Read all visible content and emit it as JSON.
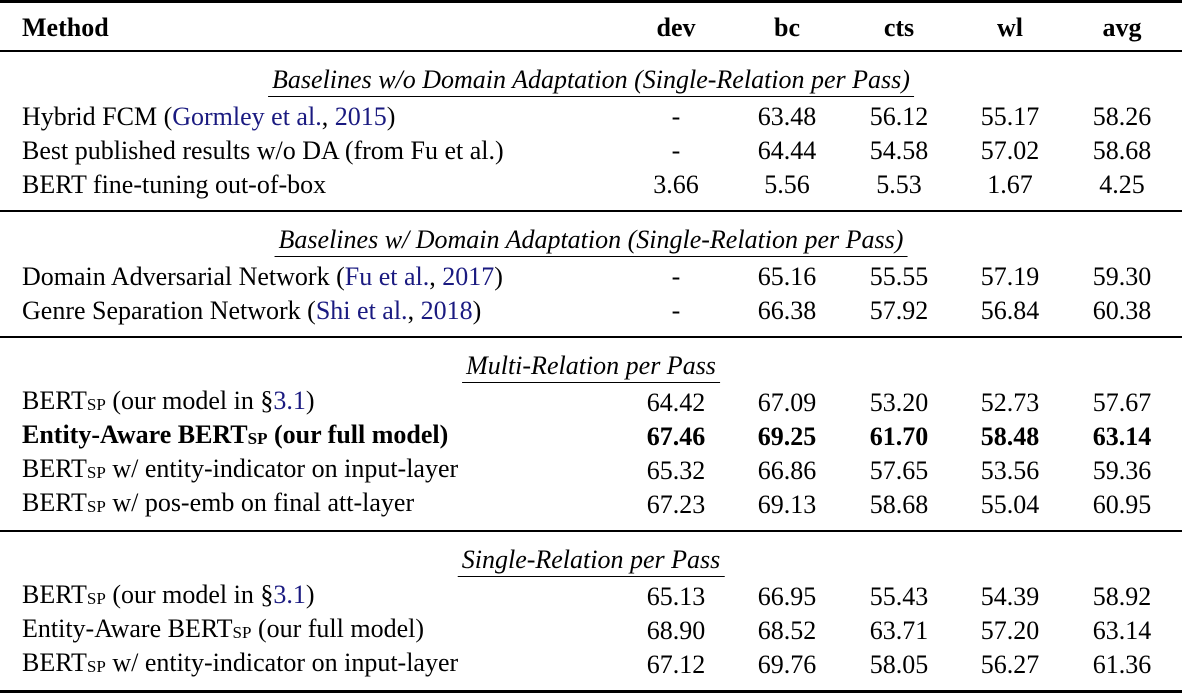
{
  "table": {
    "header": [
      "Method",
      "dev",
      "bc",
      "cts",
      "wl",
      "avg"
    ],
    "sections": [
      {
        "title": "Baselines w/o Domain Adaptation (Single-Relation per Pass)",
        "rows": [
          {
            "method": [
              {
                "text": "Hybrid FCM ("
              },
              {
                "text": "Gormley et al.",
                "style": "link"
              },
              {
                "text": ", "
              },
              {
                "text": "2015",
                "style": "link"
              },
              {
                "text": ")"
              }
            ],
            "cells": [
              "-",
              "63.48",
              "56.12",
              "55.17",
              "58.26"
            ]
          },
          {
            "method": [
              {
                "text": "Best published results w/o DA (from Fu et al.)"
              }
            ],
            "cells": [
              "-",
              "64.44",
              "54.58",
              "57.02",
              "58.68"
            ]
          },
          {
            "method": [
              {
                "text": "BERT fine-tuning out-of-box"
              }
            ],
            "cells": [
              "3.66",
              "5.56",
              "5.53",
              "1.67",
              "4.25"
            ]
          }
        ]
      },
      {
        "title": "Baselines w/ Domain Adaptation (Single-Relation per Pass)",
        "rows": [
          {
            "method": [
              {
                "text": "Domain Adversarial Network ("
              },
              {
                "text": "Fu et al.",
                "style": "link"
              },
              {
                "text": ", "
              },
              {
                "text": "2017",
                "style": "link"
              },
              {
                "text": ")"
              }
            ],
            "cells": [
              "-",
              "65.16",
              "55.55",
              "57.19",
              "59.30"
            ]
          },
          {
            "method": [
              {
                "text": "Genre Separation Network ("
              },
              {
                "text": "Shi et al.",
                "style": "link"
              },
              {
                "text": ", "
              },
              {
                "text": "2018",
                "style": "link"
              },
              {
                "text": ")"
              }
            ],
            "cells": [
              "-",
              "66.38",
              "57.92",
              "56.84",
              "60.38"
            ]
          }
        ]
      },
      {
        "title": "Multi-Relation per Pass",
        "rows": [
          {
            "method": [
              {
                "text": "BERT"
              },
              {
                "text": "SP",
                "style": "sub"
              },
              {
                "text": " (our model in §"
              },
              {
                "text": "3.1",
                "style": "link"
              },
              {
                "text": ")"
              }
            ],
            "cells": [
              "64.42",
              "67.09",
              "53.20",
              "52.73",
              "57.67"
            ]
          },
          {
            "method": [
              {
                "text": "Entity-Aware BERT"
              },
              {
                "text": "SP",
                "style": "sub"
              },
              {
                "text": " (our full model)"
              }
            ],
            "cells": [
              "67.46",
              "69.25",
              "61.70",
              "58.48",
              "63.14"
            ],
            "bold": true
          },
          {
            "method": [
              {
                "text": "BERT"
              },
              {
                "text": "SP",
                "style": "sub"
              },
              {
                "text": " w/ entity-indicator on input-layer"
              }
            ],
            "cells": [
              "65.32",
              "66.86",
              "57.65",
              "53.56",
              "59.36"
            ]
          },
          {
            "method": [
              {
                "text": "BERT"
              },
              {
                "text": "SP",
                "style": "sub"
              },
              {
                "text": " w/ pos-emb on final att-layer"
              }
            ],
            "cells": [
              "67.23",
              "69.13",
              "58.68",
              "55.04",
              "60.95"
            ]
          }
        ]
      },
      {
        "title": "Single-Relation per Pass",
        "rows": [
          {
            "method": [
              {
                "text": "BERT"
              },
              {
                "text": "SP",
                "style": "sub"
              },
              {
                "text": " (our model in §"
              },
              {
                "text": "3.1",
                "style": "link"
              },
              {
                "text": ")"
              }
            ],
            "cells": [
              "65.13",
              "66.95",
              "55.43",
              "54.39",
              "58.92"
            ]
          },
          {
            "method": [
              {
                "text": "Entity-Aware BERT"
              },
              {
                "text": "SP",
                "style": "sub"
              },
              {
                "text": " (our full model)"
              }
            ],
            "cells": [
              "68.90",
              "68.52",
              "63.71",
              "57.20",
              "63.14"
            ]
          },
          {
            "method": [
              {
                "text": "BERT"
              },
              {
                "text": "SP",
                "style": "sub"
              },
              {
                "text": " w/ entity-indicator on input-layer"
              }
            ],
            "cells": [
              "67.12",
              "69.76",
              "58.05",
              "56.27",
              "61.36"
            ]
          }
        ]
      }
    ]
  }
}
